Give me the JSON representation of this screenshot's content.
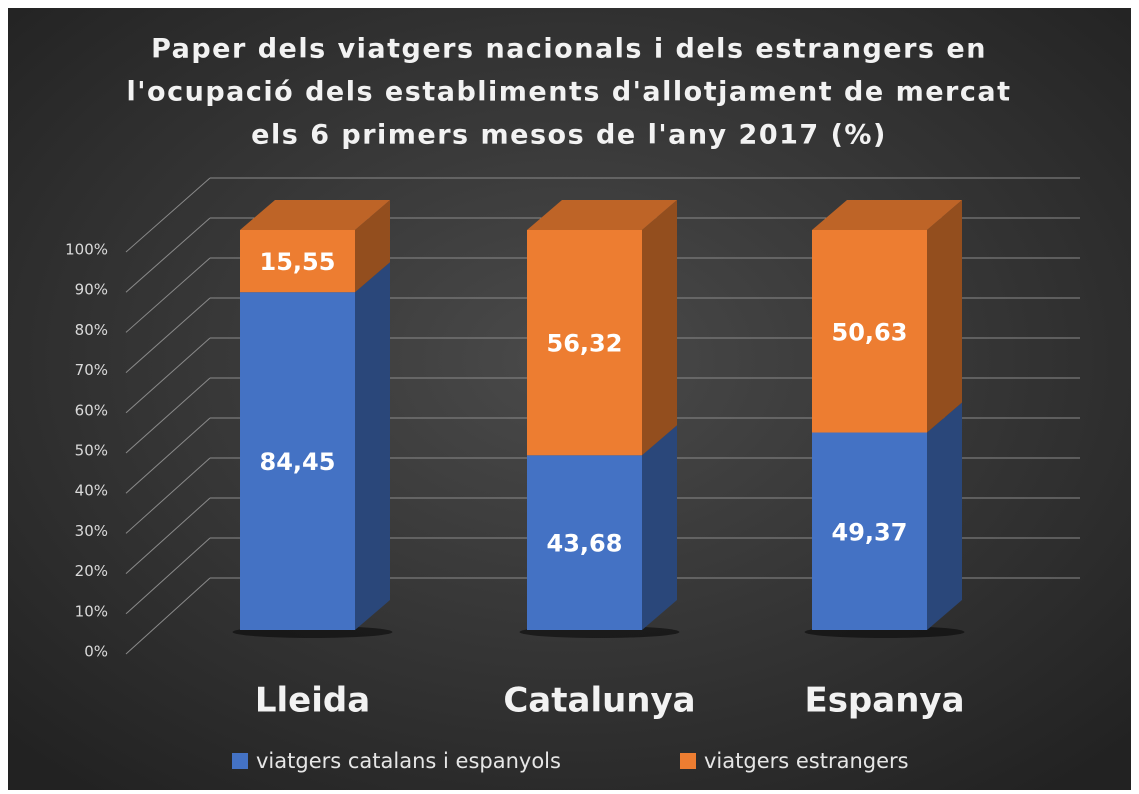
{
  "chart_data": {
    "type": "bar3d_stacked",
    "title": [
      "Paper dels viatgers nacionals i dels estrangers en",
      "l'ocupació dels establiments d'allotjament de mercat",
      "els 6 primers mesos de l'any 2017 (%)"
    ],
    "categories": [
      "Lleida",
      "Catalunya",
      "Espanya"
    ],
    "series": [
      {
        "name": "viatgers catalans i espanyols",
        "color": "#4472c4",
        "values": [
          84.45,
          43.68,
          49.37
        ],
        "value_labels": [
          "84,45",
          "43,68",
          "49,37"
        ]
      },
      {
        "name": "viatgers estrangers",
        "color": "#ed7d31",
        "values": [
          15.55,
          56.32,
          50.63
        ],
        "value_labels": [
          "15,55",
          "56,32",
          "50,63"
        ]
      }
    ],
    "ylim": [
      0,
      100
    ],
    "yticks": [
      {
        "value": 0,
        "label": "0%"
      },
      {
        "value": 10,
        "label": "10%"
      },
      {
        "value": 20,
        "label": "20%"
      },
      {
        "value": 30,
        "label": "30%"
      },
      {
        "value": 40,
        "label": "40%"
      },
      {
        "value": 50,
        "label": "50%"
      },
      {
        "value": 60,
        "label": "60%"
      },
      {
        "value": 70,
        "label": "70%"
      },
      {
        "value": 80,
        "label": "80%"
      },
      {
        "value": 90,
        "label": "90%"
      },
      {
        "value": 100,
        "label": "100%"
      }
    ],
    "grid": true,
    "legend": "bottom"
  }
}
